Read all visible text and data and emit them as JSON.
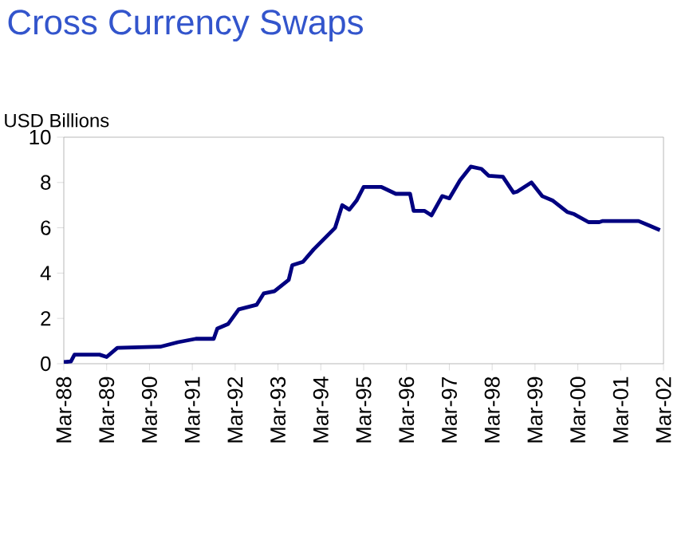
{
  "chart_data": {
    "type": "line",
    "title": "Cross Currency Swaps",
    "ylabel": "USD Billions",
    "x": [
      "1988-03",
      "1988-05",
      "1988-06",
      "1989-01",
      "1989-03",
      "1989-06",
      "1990-06",
      "1990-11",
      "1991-04",
      "1991-09",
      "1991-10",
      "1992-01",
      "1992-04",
      "1992-09",
      "1992-11",
      "1993-02",
      "1993-06",
      "1993-07",
      "1993-10",
      "1994-01",
      "1994-07",
      "1994-09",
      "1994-11",
      "1995-01",
      "1995-03",
      "1995-08",
      "1995-12",
      "1996-04",
      "1996-05",
      "1996-08",
      "1996-10",
      "1997-01",
      "1997-03",
      "1997-06",
      "1997-09",
      "1997-12",
      "1998-02",
      "1998-06",
      "1998-09",
      "1998-10",
      "1999-02",
      "1999-05",
      "1999-08",
      "1999-12",
      "2000-02",
      "2000-06",
      "2000-09",
      "2000-10",
      "2001-08",
      "2001-11",
      "2002-02"
    ],
    "series": [
      {
        "color": "#000080",
        "values": [
          0.07,
          0.1,
          0.4,
          0.4,
          0.3,
          0.7,
          0.75,
          0.95,
          1.1,
          1.1,
          1.55,
          1.75,
          2.4,
          2.6,
          3.1,
          3.2,
          3.7,
          4.35,
          4.5,
          5.05,
          6.0,
          7.0,
          6.8,
          7.2,
          7.8,
          7.8,
          7.5,
          7.5,
          6.75,
          6.75,
          6.55,
          7.4,
          7.3,
          8.1,
          8.7,
          8.6,
          8.3,
          8.25,
          7.55,
          7.6,
          8.0,
          7.4,
          7.2,
          6.7,
          6.6,
          6.25,
          6.25,
          6.3,
          6.3,
          6.1,
          5.9
        ]
      }
    ],
    "xlim": [
      "1988-03",
      "2002-03"
    ],
    "xticks": [
      {
        "value": "1988-03",
        "label": "Mar-88"
      },
      {
        "value": "1989-03",
        "label": "Mar-89"
      },
      {
        "value": "1990-03",
        "label": "Mar-90"
      },
      {
        "value": "1991-03",
        "label": "Mar-91"
      },
      {
        "value": "1992-03",
        "label": "Mar-92"
      },
      {
        "value": "1993-03",
        "label": "Mar-93"
      },
      {
        "value": "1994-03",
        "label": "Mar-94"
      },
      {
        "value": "1995-03",
        "label": "Mar-95"
      },
      {
        "value": "1996-03",
        "label": "Mar-96"
      },
      {
        "value": "1997-03",
        "label": "Mar-97"
      },
      {
        "value": "1998-03",
        "label": "Mar-98"
      },
      {
        "value": "1999-03",
        "label": "Mar-99"
      },
      {
        "value": "2000-03",
        "label": "Mar-00"
      },
      {
        "value": "2001-03",
        "label": "Mar-01"
      },
      {
        "value": "2002-03",
        "label": "Mar-02"
      }
    ],
    "ylim": [
      0,
      10
    ],
    "yticks": [
      0,
      2,
      4,
      6,
      8,
      10
    ],
    "grid": false,
    "marker": "none",
    "line_style": "solid"
  }
}
